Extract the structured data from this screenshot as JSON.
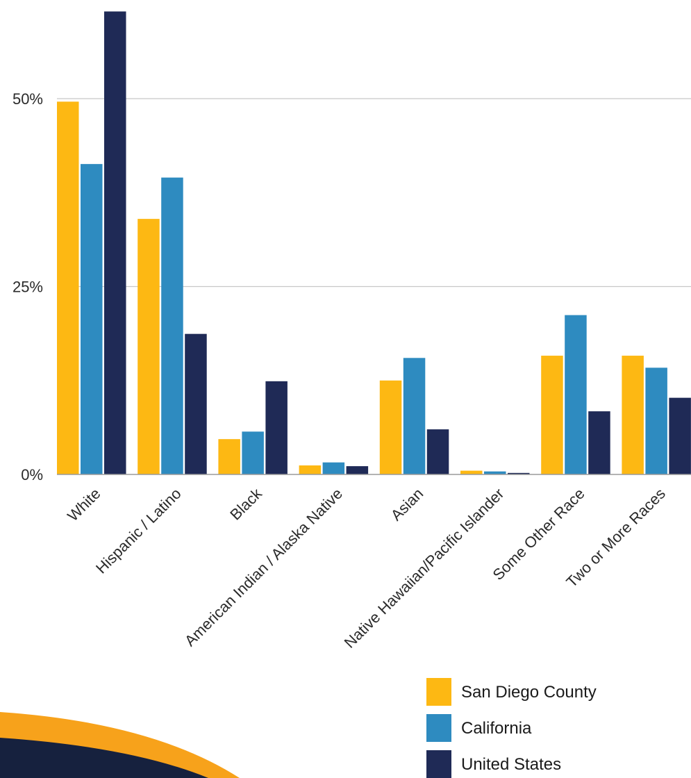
{
  "chart_data": {
    "type": "bar",
    "categories": [
      "White",
      "Hispanic / Latino",
      "Black",
      "American Indian / Alaska Native",
      "Asian",
      "Native Hawaiian/Pacific Islander",
      "Some Other Race",
      "Two or More Races"
    ],
    "series": [
      {
        "name": "San Diego County",
        "color": "#FDB813",
        "values": [
          49.6,
          34.0,
          4.7,
          1.2,
          12.5,
          0.5,
          15.8,
          15.8
        ]
      },
      {
        "name": "California",
        "color": "#2E8BC0",
        "values": [
          41.3,
          39.5,
          5.7,
          1.6,
          15.5,
          0.4,
          21.2,
          14.2
        ]
      },
      {
        "name": "United States",
        "color": "#1F2A56",
        "values": [
          61.6,
          18.7,
          12.4,
          1.1,
          6.0,
          0.2,
          8.4,
          10.2
        ]
      }
    ],
    "yticks": [
      {
        "value": 0,
        "label": "0%"
      },
      {
        "value": 25,
        "label": "25%"
      },
      {
        "value": 50,
        "label": "50%"
      }
    ],
    "ylim": [
      0,
      63
    ],
    "grid": true,
    "legend_position": "bottom-right",
    "title": "",
    "xlabel": "",
    "ylabel": ""
  },
  "decoration": {
    "outer_arc_color": "#F7A21B",
    "inner_arc_color": "#16213E"
  }
}
